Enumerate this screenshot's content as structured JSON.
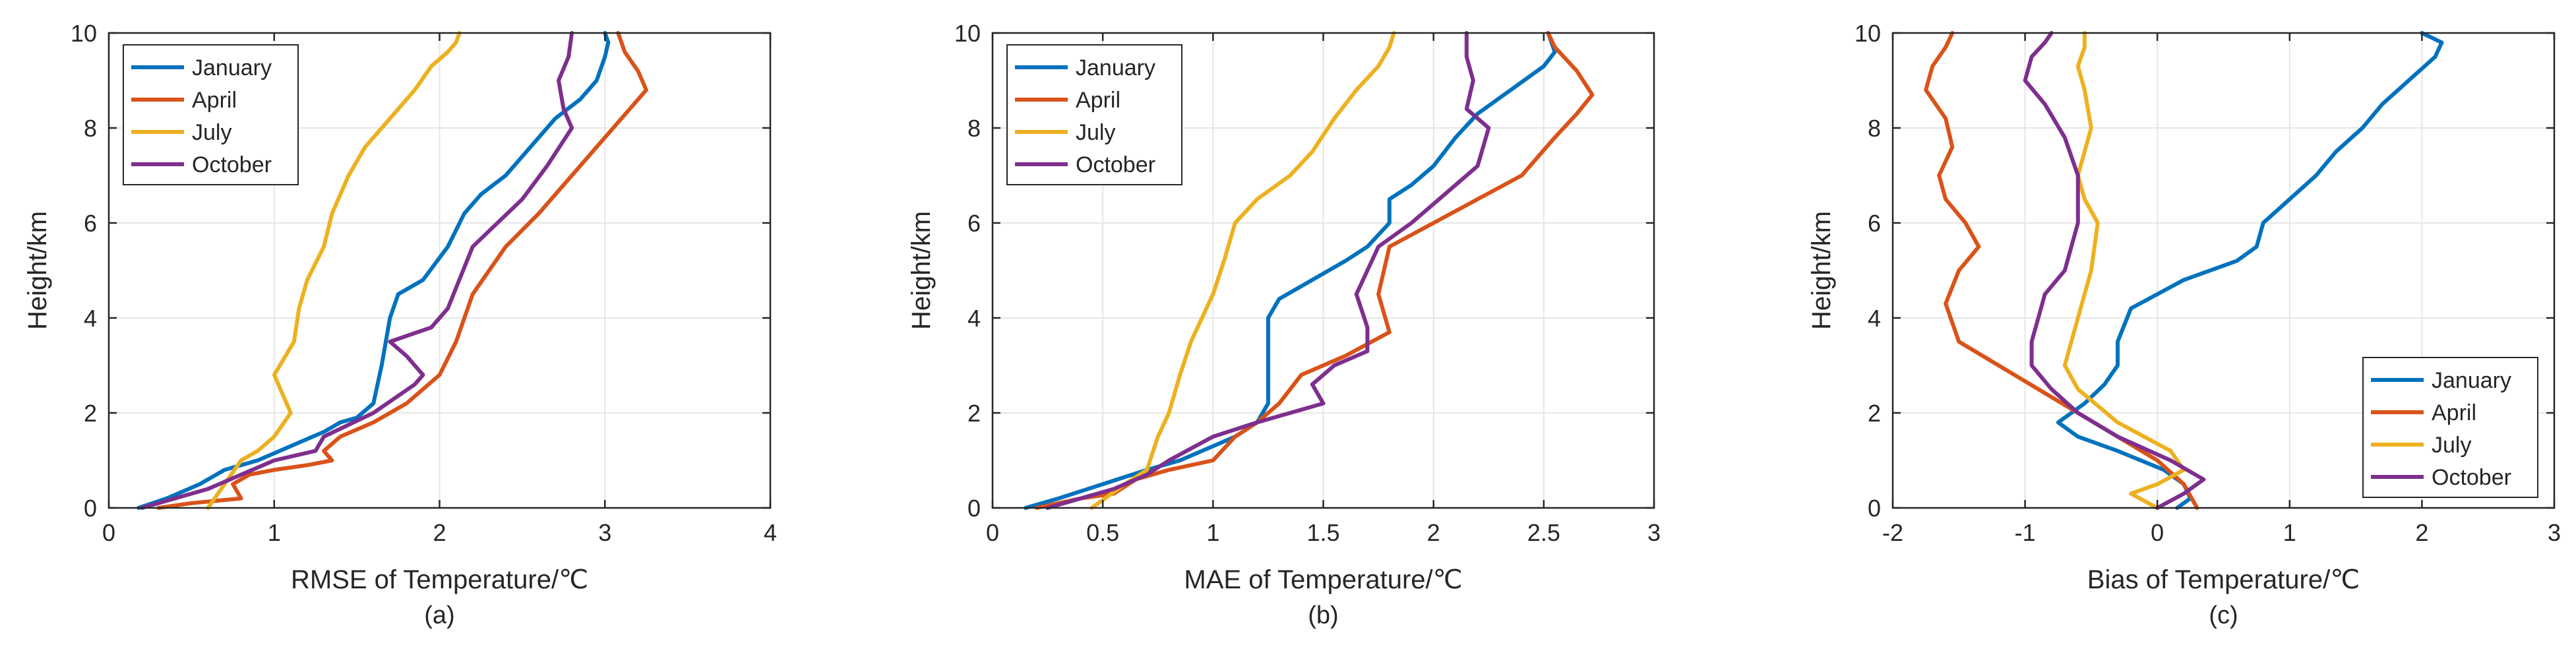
{
  "chart_data": [
    {
      "type": "line",
      "caption": "(a)",
      "xlabel": "RMSE of Temperature/℃",
      "ylabel": "Height/km",
      "xlim": [
        0,
        4
      ],
      "ylim": [
        0,
        10
      ],
      "xticks": [
        0,
        1,
        2,
        3,
        4
      ],
      "xtick_labels": [
        "0",
        "1",
        "2",
        "3",
        "4"
      ],
      "yticks": [
        0,
        2,
        4,
        6,
        8,
        10
      ],
      "ytick_labels": [
        "0",
        "2",
        "4",
        "6",
        "8",
        "10"
      ],
      "grid": true,
      "legend_loc": "top-left",
      "series": [
        {
          "name": "January",
          "color": "#0072BD",
          "x": [
            0.18,
            0.35,
            0.55,
            0.7,
            0.9,
            1.1,
            1.3,
            1.4,
            1.5,
            1.6,
            1.65,
            1.7,
            1.75,
            1.9,
            2.05,
            2.15,
            2.25,
            2.4,
            2.55,
            2.7,
            2.85,
            2.95,
            3.0,
            3.02,
            3.0
          ],
          "y": [
            0,
            0.2,
            0.5,
            0.8,
            1.0,
            1.3,
            1.6,
            1.8,
            1.9,
            2.2,
            3.0,
            4.0,
            4.5,
            4.8,
            5.5,
            6.2,
            6.6,
            7.0,
            7.6,
            8.2,
            8.6,
            9.0,
            9.5,
            9.8,
            10
          ]
        },
        {
          "name": "April",
          "color": "#D95319",
          "x": [
            0.3,
            0.5,
            0.8,
            0.75,
            0.85,
            1.0,
            1.2,
            1.35,
            1.3,
            1.4,
            1.6,
            1.8,
            2.0,
            2.1,
            2.2,
            2.4,
            2.6,
            2.8,
            3.0,
            3.15,
            3.25,
            3.2,
            3.12,
            3.08
          ],
          "y": [
            0,
            0.1,
            0.2,
            0.5,
            0.7,
            0.8,
            0.9,
            1.0,
            1.2,
            1.5,
            1.8,
            2.2,
            2.8,
            3.5,
            4.5,
            5.5,
            6.2,
            7.0,
            7.8,
            8.4,
            8.8,
            9.2,
            9.6,
            10
          ]
        },
        {
          "name": "July",
          "color": "#EDB120",
          "x": [
            0.6,
            0.7,
            0.8,
            0.9,
            1.0,
            1.1,
            1.0,
            1.12,
            1.15,
            1.2,
            1.3,
            1.35,
            1.45,
            1.55,
            1.7,
            1.85,
            1.95,
            2.05,
            2.1,
            2.12
          ],
          "y": [
            0,
            0.5,
            1.0,
            1.2,
            1.5,
            2.0,
            2.8,
            3.5,
            4.2,
            4.8,
            5.5,
            6.2,
            7.0,
            7.6,
            8.2,
            8.8,
            9.3,
            9.6,
            9.8,
            10
          ]
        },
        {
          "name": "October",
          "color": "#7E2F8E",
          "x": [
            0.2,
            0.4,
            0.6,
            0.8,
            1.0,
            1.25,
            1.3,
            1.6,
            1.85,
            1.9,
            1.8,
            1.7,
            1.95,
            2.05,
            2.2,
            2.35,
            2.5,
            2.65,
            2.8,
            2.75,
            2.72,
            2.78,
            2.8
          ],
          "y": [
            0,
            0.2,
            0.4,
            0.7,
            1.0,
            1.2,
            1.5,
            2.0,
            2.6,
            2.8,
            3.2,
            3.5,
            3.8,
            4.2,
            5.5,
            6.0,
            6.5,
            7.2,
            8.0,
            8.4,
            9.0,
            9.5,
            10
          ]
        }
      ]
    },
    {
      "type": "line",
      "caption": "(b)",
      "xlabel": "MAE of Temperature/℃",
      "ylabel": "Height/km",
      "xlim": [
        0,
        3
      ],
      "ylim": [
        0,
        10
      ],
      "xticks": [
        0,
        0.5,
        1,
        1.5,
        2,
        2.5,
        3
      ],
      "xtick_labels": [
        "0",
        "0.5",
        "1",
        "1.5",
        "2",
        "2.5",
        "3"
      ],
      "yticks": [
        0,
        2,
        4,
        6,
        8,
        10
      ],
      "ytick_labels": [
        "0",
        "2",
        "4",
        "6",
        "8",
        "10"
      ],
      "grid": true,
      "legend_loc": "top-left",
      "series": [
        {
          "name": "January",
          "color": "#0072BD",
          "x": [
            0.15,
            0.3,
            0.5,
            0.7,
            0.85,
            0.95,
            1.1,
            1.2,
            1.25,
            1.25,
            1.25,
            1.3,
            1.45,
            1.6,
            1.7,
            1.8,
            1.8,
            1.9,
            2.0,
            2.1,
            2.2,
            2.35,
            2.5,
            2.55,
            2.52
          ],
          "y": [
            0,
            0.2,
            0.5,
            0.8,
            1.0,
            1.2,
            1.5,
            1.8,
            2.2,
            3.0,
            4.0,
            4.4,
            4.8,
            5.2,
            5.5,
            6.0,
            6.5,
            6.8,
            7.2,
            7.8,
            8.3,
            8.8,
            9.3,
            9.6,
            10
          ]
        },
        {
          "name": "April",
          "color": "#D95319",
          "x": [
            0.2,
            0.4,
            0.55,
            0.65,
            0.8,
            1.0,
            1.1,
            1.2,
            1.3,
            1.4,
            1.6,
            1.8,
            1.75,
            1.8,
            2.0,
            2.2,
            2.4,
            2.55,
            2.65,
            2.72,
            2.65,
            2.55,
            2.52
          ],
          "y": [
            0,
            0.2,
            0.3,
            0.6,
            0.8,
            1.0,
            1.5,
            1.8,
            2.2,
            2.8,
            3.2,
            3.7,
            4.5,
            5.5,
            6.0,
            6.5,
            7.0,
            7.8,
            8.3,
            8.7,
            9.2,
            9.7,
            10
          ]
        },
        {
          "name": "July",
          "color": "#EDB120",
          "x": [
            0.45,
            0.6,
            0.7,
            0.75,
            0.8,
            0.85,
            0.9,
            0.95,
            1.0,
            1.05,
            1.1,
            1.2,
            1.35,
            1.45,
            1.55,
            1.65,
            1.75,
            1.8,
            1.82
          ],
          "y": [
            0,
            0.5,
            0.8,
            1.5,
            2.0,
            2.8,
            3.5,
            4.0,
            4.5,
            5.2,
            6.0,
            6.5,
            7.0,
            7.5,
            8.2,
            8.8,
            9.3,
            9.7,
            10
          ]
        },
        {
          "name": "October",
          "color": "#7E2F8E",
          "x": [
            0.25,
            0.4,
            0.55,
            0.7,
            0.8,
            1.0,
            1.2,
            1.35,
            1.5,
            1.45,
            1.55,
            1.7,
            1.7,
            1.65,
            1.75,
            1.9,
            2.05,
            2.2,
            2.25,
            2.15,
            2.18,
            2.15,
            2.15
          ],
          "y": [
            0,
            0.2,
            0.4,
            0.7,
            1.0,
            1.5,
            1.8,
            2.0,
            2.2,
            2.6,
            3.0,
            3.3,
            3.8,
            4.5,
            5.5,
            6.0,
            6.6,
            7.2,
            8.0,
            8.4,
            9.0,
            9.5,
            10
          ]
        }
      ]
    },
    {
      "type": "line",
      "caption": "(c)",
      "xlabel": "Bias of Temperature/℃",
      "ylabel": "Height/km",
      "xlim": [
        -2,
        3
      ],
      "ylim": [
        0,
        10
      ],
      "xticks": [
        -2,
        -1,
        0,
        1,
        2,
        3
      ],
      "xtick_labels": [
        "-2",
        "-1",
        "0",
        "1",
        "2",
        "3"
      ],
      "yticks": [
        0,
        2,
        4,
        6,
        8,
        10
      ],
      "ytick_labels": [
        "0",
        "2",
        "4",
        "6",
        "8",
        "10"
      ],
      "grid": true,
      "legend_loc": "bottom-right",
      "series": [
        {
          "name": "January",
          "color": "#0072BD",
          "x": [
            0.15,
            0.25,
            0.2,
            0.05,
            -0.3,
            -0.6,
            -0.75,
            -0.55,
            -0.4,
            -0.3,
            -0.3,
            -0.2,
            0.2,
            0.6,
            0.75,
            0.8,
            1.0,
            1.2,
            1.35,
            1.55,
            1.7,
            1.9,
            2.1,
            2.15,
            2.0
          ],
          "y": [
            0,
            0.2,
            0.5,
            0.8,
            1.2,
            1.5,
            1.8,
            2.2,
            2.6,
            3.0,
            3.5,
            4.2,
            4.8,
            5.2,
            5.5,
            6.0,
            6.5,
            7.0,
            7.5,
            8.0,
            8.5,
            9.0,
            9.5,
            9.8,
            10
          ]
        },
        {
          "name": "April",
          "color": "#D95319",
          "x": [
            0.3,
            0.2,
            0.0,
            -0.3,
            -0.6,
            -0.9,
            -1.2,
            -1.5,
            -1.6,
            -1.5,
            -1.35,
            -1.45,
            -1.6,
            -1.65,
            -1.55,
            -1.6,
            -1.75,
            -1.7,
            -1.6,
            -1.55
          ],
          "y": [
            0,
            0.5,
            1.0,
            1.5,
            2.0,
            2.5,
            3.0,
            3.5,
            4.3,
            5.0,
            5.5,
            6.0,
            6.5,
            7.0,
            7.6,
            8.2,
            8.8,
            9.3,
            9.7,
            10
          ]
        },
        {
          "name": "July",
          "color": "#EDB120",
          "x": [
            0.0,
            -0.2,
            0.0,
            0.2,
            0.1,
            -0.3,
            -0.6,
            -0.7,
            -0.6,
            -0.5,
            -0.45,
            -0.55,
            -0.6,
            -0.5,
            -0.55,
            -0.6,
            -0.55,
            -0.55
          ],
          "y": [
            0,
            0.3,
            0.5,
            0.8,
            1.2,
            1.8,
            2.5,
            3.0,
            4.0,
            5.0,
            6.0,
            6.5,
            7.0,
            8.0,
            8.8,
            9.3,
            9.7,
            10
          ]
        },
        {
          "name": "October",
          "color": "#7E2F8E",
          "x": [
            0.0,
            0.2,
            0.35,
            0.1,
            -0.3,
            -0.6,
            -0.8,
            -0.95,
            -0.95,
            -0.9,
            -0.85,
            -0.7,
            -0.65,
            -0.6,
            -0.6,
            -0.7,
            -0.85,
            -1.0,
            -0.95,
            -0.85,
            -0.8
          ],
          "y": [
            0,
            0.3,
            0.6,
            1.0,
            1.5,
            2.0,
            2.5,
            3.0,
            3.5,
            4.0,
            4.5,
            5.0,
            5.5,
            6.0,
            7.0,
            7.8,
            8.5,
            9.0,
            9.5,
            9.8,
            10
          ]
        }
      ]
    }
  ]
}
